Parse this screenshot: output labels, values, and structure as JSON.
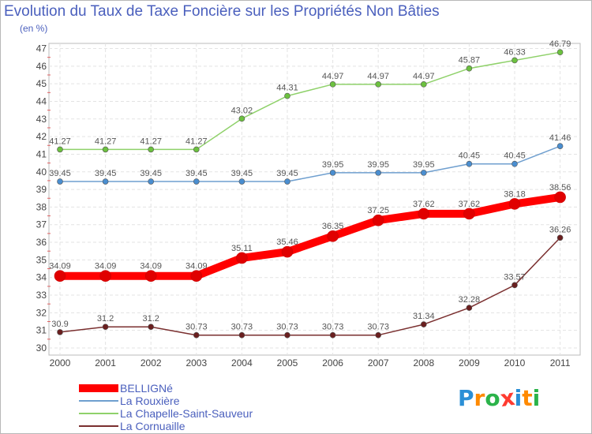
{
  "page": {
    "title": "Evolution du Taux de Taxe Foncière sur les Propriétés Non Bâties",
    "unit": "(en %)"
  },
  "chart_data": {
    "type": "line",
    "title": "Evolution du Taux de Taxe Foncière sur les Propriétés Non Bâties",
    "subtitle": "(en %)",
    "xlabel": "",
    "ylabel": "",
    "ylim": [
      30,
      47
    ],
    "grid": true,
    "legend_position": "bottom-left",
    "x": [
      "2000",
      "2001",
      "2002",
      "2003",
      "2004",
      "2005",
      "2006",
      "2007",
      "2008",
      "2009",
      "2010",
      "2011"
    ],
    "yticks": [
      "30",
      "31",
      "32",
      "33",
      "34",
      "35",
      "36",
      "37",
      "38",
      "39",
      "40",
      "41",
      "42",
      "43",
      "44",
      "45",
      "46",
      "47"
    ],
    "series": [
      {
        "name": "BELLIGNé",
        "color": "#ff0000",
        "marker_color": "#e00000",
        "values": [
          34.09,
          34.09,
          34.09,
          34.09,
          35.11,
          35.46,
          36.35,
          37.25,
          37.62,
          37.62,
          38.18,
          38.56
        ],
        "labels": [
          "34.09",
          "34.09",
          "34.09",
          "34.09",
          "35.11",
          "35.46",
          "36.35",
          "37.25",
          "37.62",
          "37.62",
          "38.18",
          "38.56"
        ]
      },
      {
        "name": "La Rouxière",
        "color": "#6f9fcf",
        "marker_color": "#4a8ed0",
        "values": [
          39.45,
          39.45,
          39.45,
          39.45,
          39.45,
          39.45,
          39.95,
          39.95,
          39.95,
          40.45,
          40.45,
          41.46
        ],
        "labels": [
          "39.45",
          "39.45",
          "39.45",
          "39.45",
          "39.45",
          "39.45",
          "39.95",
          "39.95",
          "39.95",
          "40.45",
          "40.45",
          "41.46"
        ]
      },
      {
        "name": "La Chapelle-Saint-Sauveur",
        "color": "#8fd16a",
        "marker_color": "#6cc13f",
        "values": [
          41.27,
          41.27,
          41.27,
          41.27,
          43.02,
          44.31,
          44.97,
          44.97,
          44.97,
          45.87,
          46.33,
          46.79
        ],
        "labels": [
          "41.27",
          "41.27",
          "41.27",
          "41.27",
          "43.02",
          "44.31",
          "44.97",
          "44.97",
          "44.97",
          "45.87",
          "46.33",
          "46.79"
        ]
      },
      {
        "name": "La Cornuaille",
        "color": "#7a2f2f",
        "marker_color": "#6a1f1f",
        "values": [
          30.9,
          31.2,
          31.2,
          30.73,
          30.73,
          30.73,
          30.73,
          30.73,
          31.34,
          32.28,
          33.57,
          36.26
        ],
        "labels": [
          "30.9",
          "31.2",
          "31.2",
          "30.73",
          "30.73",
          "30.73",
          "30.73",
          "30.73",
          "31.34",
          "32.28",
          "33.57",
          "36.26"
        ]
      }
    ]
  },
  "legend": {
    "items": [
      "BELLIGNé",
      "La Rouxière",
      "La Chapelle-Saint-Sauveur",
      "La Cornuaille"
    ]
  },
  "logo": {
    "letters": [
      "P",
      "r",
      "o",
      "x",
      "i",
      "t",
      "i"
    ],
    "colors": [
      "#2b8fd6",
      "#ff8a00",
      "#2bb34a",
      "#ff3b30",
      "#2b8fd6",
      "#ff8a00",
      "#2bb34a"
    ]
  }
}
